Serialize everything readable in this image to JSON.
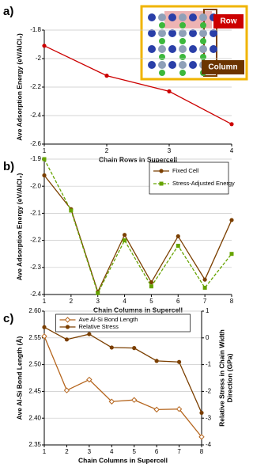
{
  "chart_data": [
    {
      "type": "line",
      "panel_label": "a)",
      "xlabel": "Chain Rows in Supercell",
      "ylabel": "Ave Adsorption Energy (eV/AlCl₃)",
      "x": [
        1,
        2,
        3,
        4
      ],
      "xlim": [
        1,
        4
      ],
      "xticks": [
        1,
        2,
        3,
        4
      ],
      "ylim": [
        -2.6,
        -1.8
      ],
      "yticks": [
        -2.6,
        -2.4,
        -2.2,
        -2,
        -1.8
      ],
      "grid": true,
      "series": [
        {
          "name": null,
          "color": "#cc0000",
          "marker": "circle",
          "values": [
            -1.91,
            -2.12,
            -2.23,
            -2.46
          ]
        }
      ],
      "annotations": [
        "Row",
        "Column"
      ]
    },
    {
      "type": "line",
      "panel_label": "b)",
      "xlabel": "Chain Columns in Supercell",
      "ylabel": "Ave Adsorption Energy (eV/AlCl₃)",
      "x": [
        1,
        2,
        3,
        4,
        5,
        6,
        7,
        8
      ],
      "xlim": [
        1,
        8
      ],
      "xticks": [
        1,
        2,
        3,
        4,
        5,
        6,
        7,
        8
      ],
      "ylim": [
        -2.4,
        -1.9
      ],
      "yticks": [
        -2.4,
        -2.3,
        -2.2,
        -2.1,
        {
          "value": -2,
          "label": "-2.0"
        },
        -1.9
      ],
      "grid": true,
      "legend": "upper right",
      "series": [
        {
          "name": "Fixed Cell",
          "color": "#7b3f00",
          "marker": "circle",
          "dash": false,
          "values": [
            -1.96,
            -2.085,
            -2.39,
            -2.18,
            -2.355,
            -2.185,
            -2.345,
            -2.125
          ]
        },
        {
          "name": "Stress-Adjusted Energy",
          "color": "#66a300",
          "marker": "square",
          "dash": true,
          "values": [
            -1.9,
            -2.09,
            -2.395,
            -2.2,
            -2.37,
            -2.22,
            -2.375,
            -2.25
          ]
        }
      ]
    },
    {
      "type": "line",
      "panel_label": "c)",
      "xlabel": "Chain Columns in Supercell",
      "ylabel": "Ave Al-Si Bond Length (Å)",
      "y2label": [
        "Relative Stress in Chain Width",
        "Direction (GPa)"
      ],
      "x": [
        1,
        2,
        3,
        4,
        5,
        6,
        7,
        8
      ],
      "xlim": [
        1,
        8
      ],
      "xticks": [
        1,
        2,
        3,
        4,
        5,
        6,
        7,
        8
      ],
      "ylim": [
        2.35,
        2.6
      ],
      "yticks": [
        2.35,
        {
          "value": 2.4,
          "label": "2.40"
        },
        2.45,
        {
          "value": 2.5,
          "label": "2.50"
        },
        2.55,
        {
          "value": 2.6,
          "label": "2.60"
        }
      ],
      "y2lim": [
        -4,
        1
      ],
      "y2ticks": [
        -4,
        -3,
        -2,
        -1,
        0,
        1
      ],
      "grid": true,
      "legend": "upper center",
      "series": [
        {
          "name": "Ave Al-Si Bond Length",
          "color": "#b5651d",
          "marker": "diamond-open",
          "values": [
            2.553,
            2.452,
            2.472,
            2.431,
            2.434,
            2.416,
            2.417,
            2.365
          ]
        },
        {
          "name": "Relative Stress",
          "color": "#7b3f00",
          "marker": "circle",
          "axis": "y2",
          "values": [
            0.4,
            -0.06,
            0.14,
            -0.36,
            -0.38,
            -0.86,
            -0.9,
            -2.8
          ]
        }
      ]
    }
  ]
}
